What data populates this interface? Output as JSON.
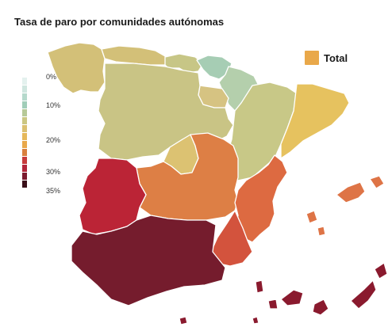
{
  "title": "Tasa de paro por comunidades autónomas",
  "legend": {
    "total_label": "Total",
    "total_color": "#e9a84a",
    "ticks": [
      {
        "label": "0%",
        "value": 0
      },
      {
        "label": "10%",
        "value": 10
      },
      {
        "label": "20%",
        "value": 20
      },
      {
        "label": "30%",
        "value": 30
      },
      {
        "label": "35%",
        "value": 35
      }
    ],
    "scale_colors": [
      "#e4f1ee",
      "#cfe6df",
      "#b5d9cc",
      "#a0cdb8",
      "#b6c998",
      "#cbc783",
      "#dbc071",
      "#e6b85a",
      "#e9a84a",
      "#d9813f",
      "#c83c3c",
      "#b3263a",
      "#7c1a2e",
      "#3a0f18"
    ]
  },
  "regions": [
    {
      "id": "galicia",
      "color": "#d3c078"
    },
    {
      "id": "asturias",
      "color": "#d3c078"
    },
    {
      "id": "cantabria",
      "color": "#c7c686"
    },
    {
      "id": "pais-vasco",
      "color": "#a6cdb4"
    },
    {
      "id": "navarra",
      "color": "#b4cfac"
    },
    {
      "id": "la-rioja",
      "color": "#d6c382"
    },
    {
      "id": "aragon",
      "color": "#c8c887"
    },
    {
      "id": "cataluna",
      "color": "#e6c25f"
    },
    {
      "id": "castilla-y-leon",
      "color": "#c9c485"
    },
    {
      "id": "madrid",
      "color": "#dcc272"
    },
    {
      "id": "castilla-la-mancha",
      "color": "#dd7f45"
    },
    {
      "id": "extremadura",
      "color": "#bb2436"
    },
    {
      "id": "comunidad-valenciana",
      "color": "#dd6a41"
    },
    {
      "id": "murcia",
      "color": "#d3533d"
    },
    {
      "id": "andalucia",
      "color": "#751c2d"
    },
    {
      "id": "baleares",
      "color": "#de7446"
    },
    {
      "id": "canarias",
      "color": "#8a1a2e"
    },
    {
      "id": "ceuta",
      "color": "#8a1a2e"
    },
    {
      "id": "melilla",
      "color": "#8a1a2e"
    }
  ]
}
